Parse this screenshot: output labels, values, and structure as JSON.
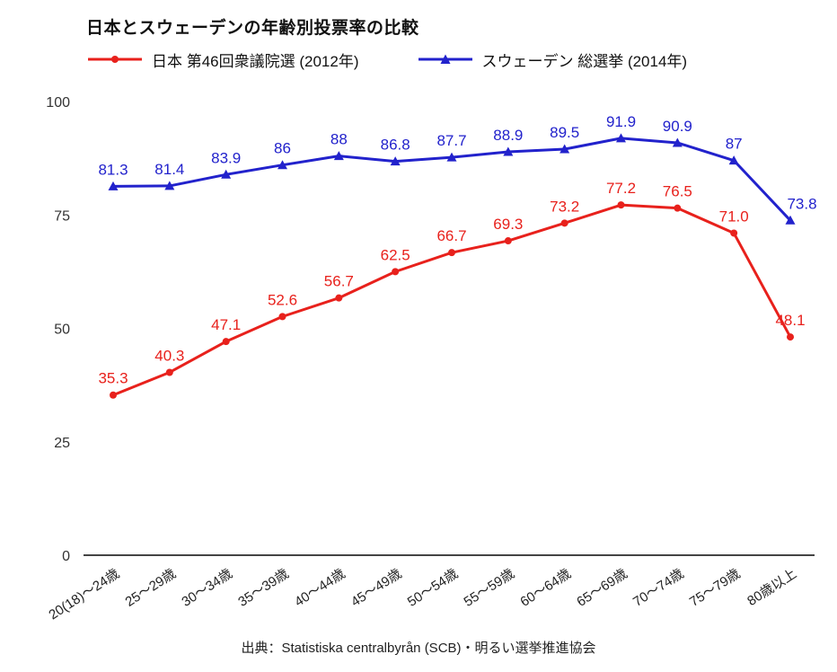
{
  "chart_data": {
    "type": "line",
    "title": "日本とスウェーデンの年齢別投票率の比較",
    "source": "出典：Statistiska centralbyrån (SCB)・明るい選挙推進協会",
    "categories": [
      "20(18)〜24歳",
      "25〜29歳",
      "30〜34歳",
      "35〜39歳",
      "40〜44歳",
      "45〜49歳",
      "50〜54歳",
      "55〜59歳",
      "60〜64歳",
      "65〜69歳",
      "70〜74歳",
      "75〜79歳",
      "80歳以上"
    ],
    "ylim": [
      0,
      100
    ],
    "yticks": [
      0,
      25,
      50,
      75,
      100
    ],
    "grid": false,
    "legend_position": "top",
    "xlabel": "",
    "ylabel": "",
    "series": [
      {
        "id": "japan",
        "name": "日本 第46回衆議院選 (2012年)",
        "color": "#e8211c",
        "marker": "circle",
        "values": [
          35.3,
          40.3,
          47.1,
          52.6,
          56.7,
          62.5,
          66.7,
          69.3,
          73.2,
          77.2,
          76.5,
          71.0,
          48.1
        ],
        "labels": [
          "35.3",
          "40.3",
          "47.1",
          "52.6",
          "56.7",
          "62.5",
          "66.7",
          "69.3",
          "73.2",
          "77.2",
          "76.5",
          "71.0",
          "48.1"
        ]
      },
      {
        "id": "sweden",
        "name": "スウェーデン 総選挙 (2014年)",
        "color": "#2222cc",
        "marker": "triangle",
        "values": [
          81.3,
          81.4,
          83.9,
          86,
          88,
          86.8,
          87.7,
          88.9,
          89.5,
          91.9,
          90.9,
          87,
          73.8
        ],
        "labels": [
          "81.3",
          "81.4",
          "83.9",
          "86",
          "88",
          "86.8",
          "87.7",
          "88.9",
          "89.5",
          "91.9",
          "90.9",
          "87",
          "73.8"
        ]
      }
    ]
  }
}
